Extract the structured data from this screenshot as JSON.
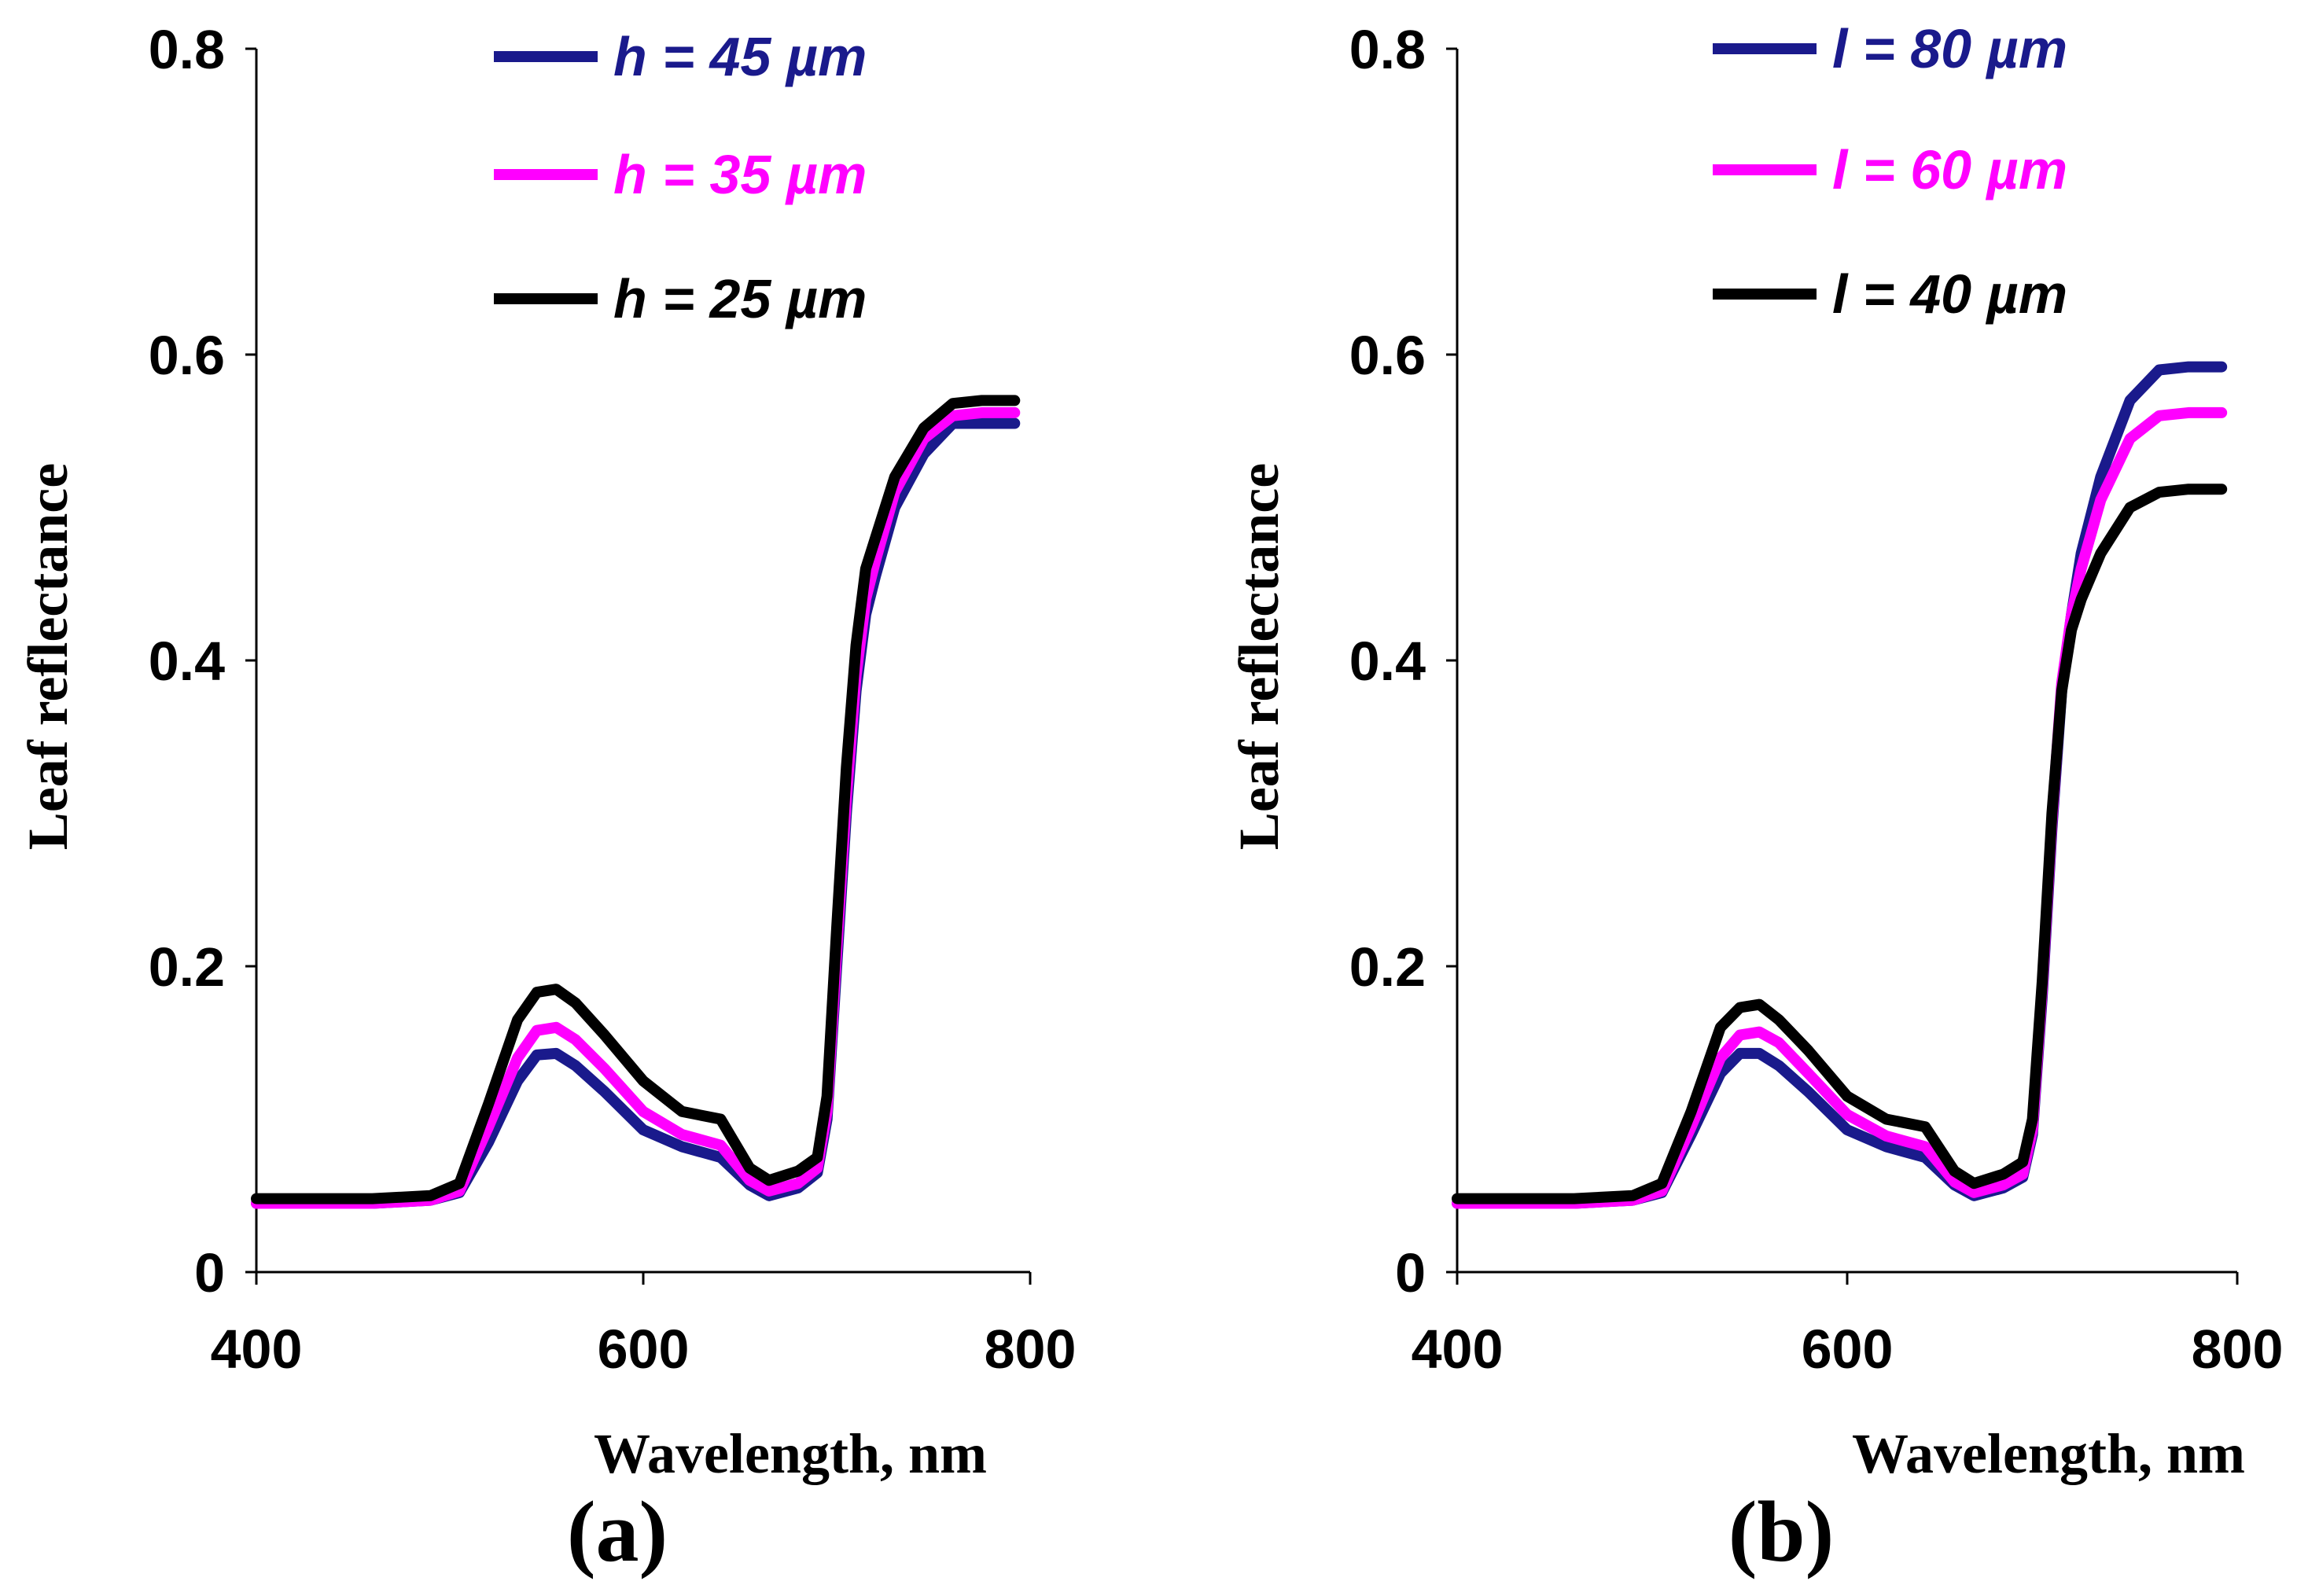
{
  "chart_data": [
    {
      "type": "line",
      "panel_label": "(a)",
      "xlabel": "Wavelength, nm",
      "ylabel": "Leaf reflectance",
      "xlim": [
        400,
        800
      ],
      "ylim": [
        0,
        0.8
      ],
      "xticks": [
        400,
        600,
        800
      ],
      "yticks": [
        0,
        0.2,
        0.4,
        0.6,
        0.8
      ],
      "xtick_labels": [
        "400",
        "600",
        "800"
      ],
      "ytick_labels": [
        "0",
        "0.2",
        "0.4",
        "0.6",
        "0.8"
      ],
      "legend_position": "top-center",
      "series": [
        {
          "name": "h = 45 µm",
          "color": "#1a1a8c",
          "x": [
            400,
            460,
            490,
            505,
            520,
            535,
            545,
            555,
            565,
            580,
            600,
            620,
            640,
            655,
            665,
            680,
            690,
            695,
            700,
            705,
            710,
            715,
            720,
            730,
            745,
            760,
            775,
            792
          ],
          "y": [
            0.045,
            0.045,
            0.047,
            0.052,
            0.085,
            0.125,
            0.142,
            0.143,
            0.135,
            0.118,
            0.093,
            0.082,
            0.075,
            0.057,
            0.05,
            0.055,
            0.065,
            0.1,
            0.2,
            0.3,
            0.38,
            0.43,
            0.455,
            0.5,
            0.535,
            0.555,
            0.555,
            0.555
          ]
        },
        {
          "name": "h = 35 µm",
          "color": "#ff00ff",
          "x": [
            400,
            460,
            490,
            505,
            520,
            535,
            545,
            555,
            565,
            580,
            600,
            620,
            640,
            655,
            665,
            680,
            690,
            695,
            700,
            705,
            710,
            715,
            720,
            730,
            745,
            760,
            775,
            792
          ],
          "y": [
            0.045,
            0.045,
            0.047,
            0.053,
            0.095,
            0.14,
            0.158,
            0.16,
            0.152,
            0.133,
            0.105,
            0.09,
            0.083,
            0.06,
            0.053,
            0.058,
            0.068,
            0.105,
            0.21,
            0.31,
            0.39,
            0.44,
            0.465,
            0.51,
            0.545,
            0.56,
            0.562,
            0.562
          ]
        },
        {
          "name": "h = 25 µm",
          "color": "#000000",
          "x": [
            400,
            460,
            490,
            505,
            520,
            535,
            545,
            555,
            565,
            580,
            600,
            620,
            640,
            655,
            665,
            680,
            690,
            695,
            700,
            705,
            710,
            715,
            720,
            730,
            745,
            760,
            775,
            792
          ],
          "y": [
            0.048,
            0.048,
            0.05,
            0.058,
            0.11,
            0.165,
            0.183,
            0.185,
            0.176,
            0.155,
            0.125,
            0.105,
            0.1,
            0.068,
            0.06,
            0.066,
            0.075,
            0.115,
            0.225,
            0.33,
            0.41,
            0.46,
            0.48,
            0.52,
            0.552,
            0.568,
            0.57,
            0.57
          ]
        }
      ]
    },
    {
      "type": "line",
      "panel_label": "(b)",
      "xlabel": "Wavelength, nm",
      "ylabel": "Leaf reflectance",
      "xlim": [
        400,
        800
      ],
      "ylim": [
        0,
        0.8
      ],
      "xticks": [
        400,
        600,
        800
      ],
      "yticks": [
        0,
        0.2,
        0.4,
        0.6,
        0.8
      ],
      "xtick_labels": [
        "400",
        "600",
        "800"
      ],
      "ytick_labels": [
        "0",
        "0.2",
        "0.4",
        "0.6",
        "0.8"
      ],
      "legend_position": "top-center",
      "series": [
        {
          "name": "l = 80 µm",
          "color": "#1a1a8c",
          "x": [
            400,
            460,
            490,
            505,
            520,
            535,
            545,
            555,
            565,
            580,
            600,
            620,
            640,
            655,
            665,
            680,
            690,
            695,
            700,
            705,
            710,
            715,
            720,
            730,
            745,
            760,
            775,
            792
          ],
          "y": [
            0.045,
            0.045,
            0.047,
            0.052,
            0.09,
            0.13,
            0.143,
            0.143,
            0.135,
            0.118,
            0.093,
            0.082,
            0.075,
            0.057,
            0.05,
            0.055,
            0.062,
            0.09,
            0.18,
            0.29,
            0.38,
            0.43,
            0.47,
            0.52,
            0.57,
            0.59,
            0.592,
            0.592
          ]
        },
        {
          "name": "l = 60 µm",
          "color": "#ff00ff",
          "x": [
            400,
            460,
            490,
            505,
            520,
            535,
            545,
            555,
            565,
            580,
            600,
            620,
            640,
            655,
            665,
            680,
            690,
            695,
            700,
            705,
            710,
            715,
            720,
            730,
            745,
            760,
            775,
            792
          ],
          "y": [
            0.045,
            0.045,
            0.047,
            0.053,
            0.095,
            0.14,
            0.155,
            0.157,
            0.15,
            0.13,
            0.103,
            0.089,
            0.082,
            0.059,
            0.052,
            0.057,
            0.064,
            0.093,
            0.185,
            0.295,
            0.385,
            0.43,
            0.46,
            0.505,
            0.545,
            0.56,
            0.562,
            0.562
          ]
        },
        {
          "name": "l = 40 µm",
          "color": "#000000",
          "x": [
            400,
            460,
            490,
            505,
            520,
            535,
            545,
            555,
            565,
            580,
            600,
            620,
            640,
            655,
            665,
            680,
            690,
            695,
            700,
            705,
            710,
            715,
            720,
            730,
            745,
            760,
            775,
            792
          ],
          "y": [
            0.048,
            0.048,
            0.05,
            0.058,
            0.105,
            0.16,
            0.173,
            0.175,
            0.165,
            0.145,
            0.115,
            0.1,
            0.095,
            0.066,
            0.058,
            0.064,
            0.072,
            0.1,
            0.19,
            0.3,
            0.38,
            0.42,
            0.44,
            0.47,
            0.5,
            0.51,
            0.512,
            0.512
          ]
        }
      ]
    }
  ]
}
